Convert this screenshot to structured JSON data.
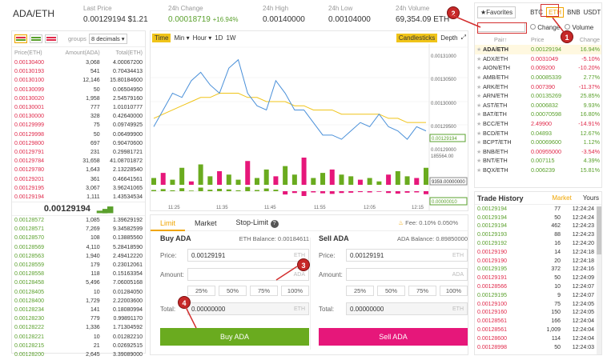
{
  "header": {
    "pair": "ADA/ETH",
    "stats": [
      {
        "label": "Last Price",
        "value": "0.00129194 $1.21",
        "cls": ""
      },
      {
        "label": "24h Change",
        "value": "0.00018719",
        "pct": "+16.94%",
        "cls": "green"
      },
      {
        "label": "24h High",
        "value": "0.00140000",
        "cls": ""
      },
      {
        "label": "24h Low",
        "value": "0.00104000",
        "cls": ""
      },
      {
        "label": "24h Volume",
        "value": "69,354.09 ETH",
        "cls": ""
      }
    ]
  },
  "orderbook": {
    "groups_label": "groups",
    "decimals": "8 decimals",
    "cols": [
      "Price(ETH)",
      "Amount(ADA)",
      "Total(ETH)"
    ],
    "asks": [
      [
        "0.00130400",
        "3,068",
        "4.00067200"
      ],
      [
        "0.00130193",
        "541",
        "0.70434413"
      ],
      [
        "0.00130100",
        "12,146",
        "15.80184600"
      ],
      [
        "0.00130099",
        "50",
        "0.06504950"
      ],
      [
        "0.00130020",
        "1,958",
        "2.54579160"
      ],
      [
        "0.00130001",
        "777",
        "1.01010777"
      ],
      [
        "0.00130000",
        "328",
        "0.42640000"
      ],
      [
        "0.00129999",
        "75",
        "0.09749925"
      ],
      [
        "0.00129998",
        "50",
        "0.06499900"
      ],
      [
        "0.00129800",
        "697",
        "0.90470600"
      ],
      [
        "0.00129791",
        "231",
        "0.29981721"
      ],
      [
        "0.00129784",
        "31,658",
        "41.08701872"
      ],
      [
        "0.00129780",
        "1,643",
        "2.13228540"
      ],
      [
        "0.00129201",
        "361",
        "0.46641561"
      ],
      [
        "0.00129195",
        "3,067",
        "3.96241065"
      ],
      [
        "0.00129194",
        "1,111",
        "1.43534534"
      ]
    ],
    "last": "0.00129194",
    "bids": [
      [
        "0.00128572",
        "1,085",
        "1.39629192"
      ],
      [
        "0.00128571",
        "7,269",
        "9.34582599"
      ],
      [
        "0.00128570",
        "108",
        "0.13885560"
      ],
      [
        "0.00128569",
        "4,110",
        "5.28418590"
      ],
      [
        "0.00128563",
        "1,940",
        "2.49412220"
      ],
      [
        "0.00128559",
        "179",
        "0.23012061"
      ],
      [
        "0.00128558",
        "118",
        "0.15163354"
      ],
      [
        "0.00128458",
        "5,496",
        "7.06005168"
      ],
      [
        "0.00128405",
        "10",
        "0.01284050"
      ],
      [
        "0.00128400",
        "1,729",
        "2.22003600"
      ],
      [
        "0.00128234",
        "141",
        "0.18080994"
      ],
      [
        "0.00128230",
        "779",
        "0.99891170"
      ],
      [
        "0.00128222",
        "1,336",
        "1.71304592"
      ],
      [
        "0.00128221",
        "10",
        "0.01282210"
      ],
      [
        "0.00128215",
        "21",
        "0.02692515"
      ],
      [
        "0.00128200",
        "2,645",
        "3.39089000"
      ]
    ]
  },
  "chart": {
    "tools": [
      "Time",
      "Min",
      "Hour",
      "1D",
      "1W"
    ],
    "candles": "Candlesticks",
    "depth": "Depth",
    "yticks": [
      "0.00131000",
      "0.00130500",
      "0.00130000",
      "0.00129500",
      "0.00129194",
      "0.00129000"
    ],
    "vol": "185564.00",
    "vol2": "9359.00000000",
    "macd": "0.00000010",
    "xticks": [
      "11:25",
      "11:35",
      "11:45",
      "11:55",
      "12:05",
      "12:15"
    ],
    "price_line": [
      0.001292,
      0.001296,
      0.0013,
      0.001299,
      0.001303,
      0.001305,
      0.001302,
      0.0013,
      0.001306,
      0.001308,
      0.0013,
      0.001297,
      0.001296,
      0.001303,
      0.0013,
      0.001296,
      0.001296,
      0.001293,
      0.00129,
      0.00129,
      0.001289,
      0.001291,
      0.001293,
      0.001292,
      0.001295,
      0.001292,
      0.001291,
      0.001289,
      0.001292,
      0.001291
    ],
    "ma_line": [
      0.001294,
      0.001295,
      0.001296,
      0.001297,
      0.001298,
      0.001299,
      0.001299,
      0.0013,
      0.0013,
      0.0013,
      0.001299,
      0.001299,
      0.001298,
      0.001298,
      0.001298,
      0.001297,
      0.001297,
      0.001296,
      0.001296,
      0.001296,
      0.001295,
      0.001295,
      0.001295,
      0.001295,
      0.001295,
      0.001294,
      0.001294,
      0.001293,
      0.001293,
      0.001293
    ],
    "volumes": [
      20,
      35,
      15,
      50,
      10,
      60,
      25,
      40,
      30,
      15,
      70,
      20,
      45,
      25,
      55,
      30,
      80,
      20,
      35,
      45,
      30,
      25,
      15,
      20,
      10,
      30,
      40,
      25,
      20,
      50
    ]
  },
  "trade": {
    "tabs": [
      "Limit",
      "Market",
      "Stop-Limit"
    ],
    "fee": "Fee: 0.10% 0.050%",
    "buy": {
      "title": "Buy ADA",
      "balance": "ETH Balance: 0.00184611",
      "price_label": "Price:",
      "price": "0.00129191",
      "price_unit": "ETH",
      "amount_label": "Amount:",
      "amount": "",
      "amount_unit": "ADA",
      "pcts": [
        "25%",
        "50%",
        "75%",
        "100%"
      ],
      "total_label": "Total:",
      "total": "0.00000000",
      "total_unit": "ETH",
      "btn": "Buy ADA"
    },
    "sell": {
      "title": "Sell ADA",
      "balance": "ADA Balance: 0.89850000",
      "price_label": "Price:",
      "price": "0.00129191",
      "price_unit": "ETH",
      "amount_label": "Amount:",
      "amount": "",
      "amount_unit": "ADA",
      "pcts": [
        "25%",
        "50%",
        "75%",
        "100%"
      ],
      "total_label": "Total:",
      "total": "0.00000000",
      "total_unit": "ETH",
      "btn": "Sell ADA"
    }
  },
  "markets": {
    "fav": "Favorites",
    "tabs": [
      "BTC",
      "ETH",
      "BNB",
      "USDT"
    ],
    "change": "Change",
    "volume": "Volume",
    "cols": [
      "Pair",
      "Price",
      "Change"
    ],
    "rows": [
      [
        "ADA/ETH",
        "0.00129194",
        "16.94%",
        "green"
      ],
      [
        "ADX/ETH",
        "0.0031049",
        "-5.10%",
        "red"
      ],
      [
        "AION/ETH",
        "0.009200",
        "-10.20%",
        "red"
      ],
      [
        "AMB/ETH",
        "0.00085339",
        "2.77%",
        "green"
      ],
      [
        "ARK/ETH",
        "0.007390",
        "-11.37%",
        "red"
      ],
      [
        "ARN/ETH",
        "0.00135269",
        "25.85%",
        "green"
      ],
      [
        "AST/ETH",
        "0.0006832",
        "9.93%",
        "green"
      ],
      [
        "BAT/ETH",
        "0.00070598",
        "16.80%",
        "green"
      ],
      [
        "BCC/ETH",
        "2.49900",
        "-14.91%",
        "red"
      ],
      [
        "BCD/ETH",
        "0.04893",
        "12.67%",
        "green"
      ],
      [
        "BCPT/ETH",
        "0.00069600",
        "1.12%",
        "green"
      ],
      [
        "BNB/ETH",
        "0.00955000",
        "-3.54%",
        "red"
      ],
      [
        "BNT/ETH",
        "0.007115",
        "4.39%",
        "green"
      ],
      [
        "BQX/ETH",
        "0.006239",
        "15.81%",
        "green"
      ]
    ]
  },
  "history": {
    "title": "Trade History",
    "tabs": [
      "Market",
      "Yours"
    ],
    "rows": [
      [
        "0.00129194",
        "77",
        "12:24:24",
        "green"
      ],
      [
        "0.00129194",
        "50",
        "12:24:24",
        "green"
      ],
      [
        "0.00129194",
        "462",
        "12:24:23",
        "green"
      ],
      [
        "0.00129193",
        "88",
        "12:24:23",
        "green"
      ],
      [
        "0.00129192",
        "16",
        "12:24:20",
        "green"
      ],
      [
        "0.00129190",
        "14",
        "12:24:18",
        "red"
      ],
      [
        "0.00129190",
        "20",
        "12:24:18",
        "red"
      ],
      [
        "0.00129195",
        "372",
        "12:24:16",
        "green"
      ],
      [
        "0.00129191",
        "50",
        "12:24:09",
        "red"
      ],
      [
        "0.00128566",
        "10",
        "12:24:07",
        "red"
      ],
      [
        "0.00129195",
        "9",
        "12:24:07",
        "green"
      ],
      [
        "0.00129100",
        "75",
        "12:24:05",
        "red"
      ],
      [
        "0.00129160",
        "150",
        "12:24:05",
        "red"
      ],
      [
        "0.00128561",
        "166",
        "12:24:04",
        "red"
      ],
      [
        "0.00128561",
        "1,009",
        "12:24:04",
        "red"
      ],
      [
        "0.00128600",
        "114",
        "12:24:04",
        "red"
      ],
      [
        "0.00128998",
        "50",
        "12:24:03",
        "red"
      ]
    ]
  },
  "annotations": [
    "1",
    "2",
    "3",
    "4"
  ],
  "colors": {
    "accent": "#f0a500",
    "buy": "#5aa02c",
    "sell": "#e6177a",
    "red": "#e0294a",
    "green": "#5aa02c",
    "marker": "#c62828"
  }
}
